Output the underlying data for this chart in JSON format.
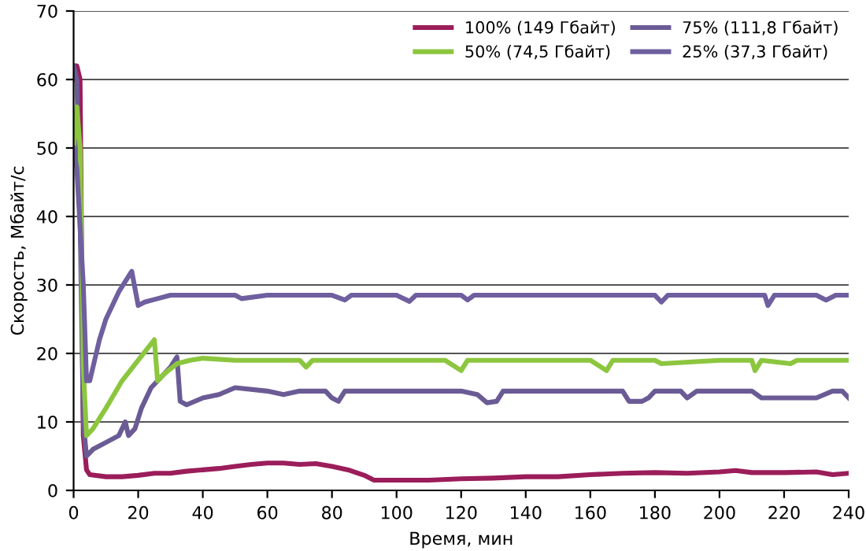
{
  "chart_data": {
    "type": "line",
    "xlabel": "Время, мин",
    "ylabel": "Скорость, Мбайт/с",
    "xlim": [
      0,
      240
    ],
    "xticks": [
      0,
      20,
      40,
      60,
      80,
      100,
      120,
      140,
      160,
      180,
      200,
      220,
      240
    ],
    "ylim": [
      0,
      70
    ],
    "yticks": [
      0,
      10,
      20,
      30,
      40,
      50,
      60,
      70
    ],
    "grid": "y",
    "legend": "top right",
    "marker": "none",
    "line_style": "solid",
    "series": [
      {
        "name": "100% (149 Гбайт)",
        "color": "#9b1d5a",
        "x": [
          0,
          1,
          2,
          3,
          4,
          5,
          10,
          15,
          20,
          25,
          30,
          35,
          40,
          45,
          50,
          55,
          60,
          65,
          70,
          75,
          80,
          85,
          90,
          93,
          100,
          110,
          120,
          130,
          140,
          150,
          160,
          170,
          180,
          190,
          200,
          205,
          210,
          220,
          230,
          235,
          240
        ],
        "values": [
          60,
          62,
          60,
          8,
          3,
          2.3,
          2,
          2,
          2.2,
          2.5,
          2.5,
          2.8,
          3,
          3.2,
          3.5,
          3.8,
          4,
          4,
          3.8,
          3.9,
          3.5,
          3,
          2.2,
          1.5,
          1.5,
          1.5,
          1.7,
          1.8,
          2,
          2,
          2.3,
          2.5,
          2.6,
          2.5,
          2.7,
          2.9,
          2.6,
          2.6,
          2.7,
          2.3,
          2.5
        ]
      },
      {
        "name": "75% (111,8 Гбайт)",
        "color": "#6b5b95",
        "x": [
          0,
          1,
          2,
          3,
          4,
          6,
          10,
          14,
          16,
          17,
          19,
          21,
          24,
          28,
          30,
          32,
          33,
          35,
          40,
          45,
          50,
          60,
          65,
          70,
          78,
          80,
          82,
          84,
          100,
          110,
          120,
          125,
          128,
          131,
          133,
          140,
          160,
          170,
          172,
          176,
          178,
          180,
          188,
          190,
          193,
          210,
          213,
          220,
          230,
          235,
          238,
          240
        ],
        "values": [
          62,
          60,
          40,
          10,
          5,
          6,
          7,
          8,
          10,
          8,
          9,
          12,
          15,
          17,
          18,
          19.5,
          13,
          12.5,
          13.5,
          14,
          15,
          14.5,
          14,
          14.5,
          14.5,
          13.5,
          13,
          14.5,
          14.5,
          14.5,
          14.5,
          14,
          12.8,
          13,
          14.5,
          14.5,
          14.5,
          14.5,
          13,
          13,
          13.5,
          14.5,
          14.5,
          13.5,
          14.5,
          14.5,
          13.5,
          13.5,
          13.5,
          14.5,
          14.5,
          13.5
        ]
      },
      {
        "name": "50% (74,5 Гбайт)",
        "color": "#8cc63f",
        "x": [
          0,
          1,
          2,
          3,
          4,
          6,
          10,
          15,
          20,
          25,
          26,
          28,
          32,
          36,
          40,
          50,
          60,
          70,
          72,
          74,
          80,
          100,
          115,
          120,
          122,
          140,
          160,
          165,
          167,
          180,
          182,
          200,
          210,
          211,
          213,
          222,
          224,
          240
        ],
        "values": [
          50,
          56,
          50,
          18,
          8,
          9,
          12,
          16,
          19,
          22,
          16,
          17,
          18.5,
          19,
          19.3,
          19,
          19,
          19,
          18,
          19,
          19,
          19,
          19,
          17.5,
          19,
          19,
          19,
          17.5,
          19,
          19,
          18.5,
          19,
          19,
          17.5,
          19,
          18.5,
          19,
          19
        ]
      },
      {
        "name": "25% (37,3 Гбайт)",
        "color": "#6f5f9f",
        "x": [
          0,
          1,
          3,
          4,
          5,
          6,
          8,
          10,
          14,
          18,
          20,
          22,
          26,
          30,
          35,
          40,
          50,
          52,
          60,
          80,
          84,
          86,
          100,
          104,
          106,
          120,
          122,
          124,
          160,
          180,
          182,
          184,
          200,
          214,
          215,
          217,
          230,
          233,
          236,
          240
        ],
        "values": [
          50,
          47,
          30,
          16,
          16,
          18,
          22,
          25,
          29,
          32,
          27,
          27.5,
          28,
          28.5,
          28.5,
          28.5,
          28.5,
          28,
          28.5,
          28.5,
          27.8,
          28.5,
          28.5,
          27.6,
          28.5,
          28.5,
          27.8,
          28.5,
          28.5,
          28.5,
          27.5,
          28.5,
          28.5,
          28.5,
          27,
          28.5,
          28.5,
          27.8,
          28.5,
          28.5
        ]
      }
    ]
  }
}
